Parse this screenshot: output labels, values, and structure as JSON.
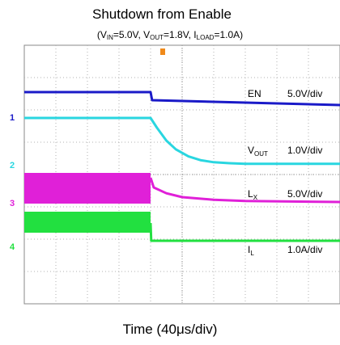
{
  "title": "Shutdown from Enable",
  "subtitle": {
    "vin_sym": "V",
    "vin_sub": "IN",
    "vin_val": "=5.0V, ",
    "vout_sym": "V",
    "vout_sub": "OUT",
    "vout_val": "=1.8V, ",
    "iload_sym": "I",
    "iload_sub": "LOAD",
    "iload_val": "=1.0A)",
    "open": "("
  },
  "xlabel": "Time (40μs/div)",
  "chart_data": {
    "type": "line",
    "x_unit": "div",
    "xlim": [
      0,
      10
    ],
    "ylim": [
      0,
      8
    ],
    "trigger_x": 4,
    "grid": true,
    "series": [
      {
        "name": "EN",
        "sym": "EN",
        "sub": "",
        "scale": "5.0V/div",
        "color": "#1a1ac8",
        "marker": "1",
        "marker_y": 5.78,
        "x": [
          0,
          4,
          4.05,
          10
        ],
        "y": [
          6.55,
          6.55,
          6.3,
          6.15
        ]
      },
      {
        "name": "VOUT",
        "sym": "V",
        "sub": "OUT",
        "scale": "1.0V/div",
        "color": "#29d6e0",
        "marker": "2",
        "marker_y": 4.3,
        "x": [
          0,
          4,
          4.2,
          4.5,
          4.8,
          5.2,
          5.6,
          6.0,
          6.5,
          7,
          10
        ],
        "y": [
          5.75,
          5.75,
          5.45,
          5.05,
          4.78,
          4.56,
          4.44,
          4.38,
          4.35,
          4.33,
          4.33
        ]
      },
      {
        "name": "LX",
        "sym": "L",
        "sub": "X",
        "scale": "5.0V/div",
        "color": "#e020d8",
        "marker": "3",
        "marker_y": 3.12,
        "band": [
          3.1,
          4.05
        ],
        "x": [
          4,
          4.1,
          4.5,
          5,
          6,
          7,
          10
        ],
        "y": [
          3.9,
          3.6,
          3.42,
          3.3,
          3.22,
          3.18,
          3.15
        ]
      },
      {
        "name": "IL",
        "sym": "I",
        "sub": "L",
        "scale": "1.0A/div",
        "color": "#22e040",
        "marker": "4",
        "marker_y": 1.78,
        "band": [
          2.2,
          2.85
        ],
        "x": [
          4,
          4.02,
          10
        ],
        "y": [
          2.5,
          1.95,
          1.95
        ]
      }
    ]
  }
}
